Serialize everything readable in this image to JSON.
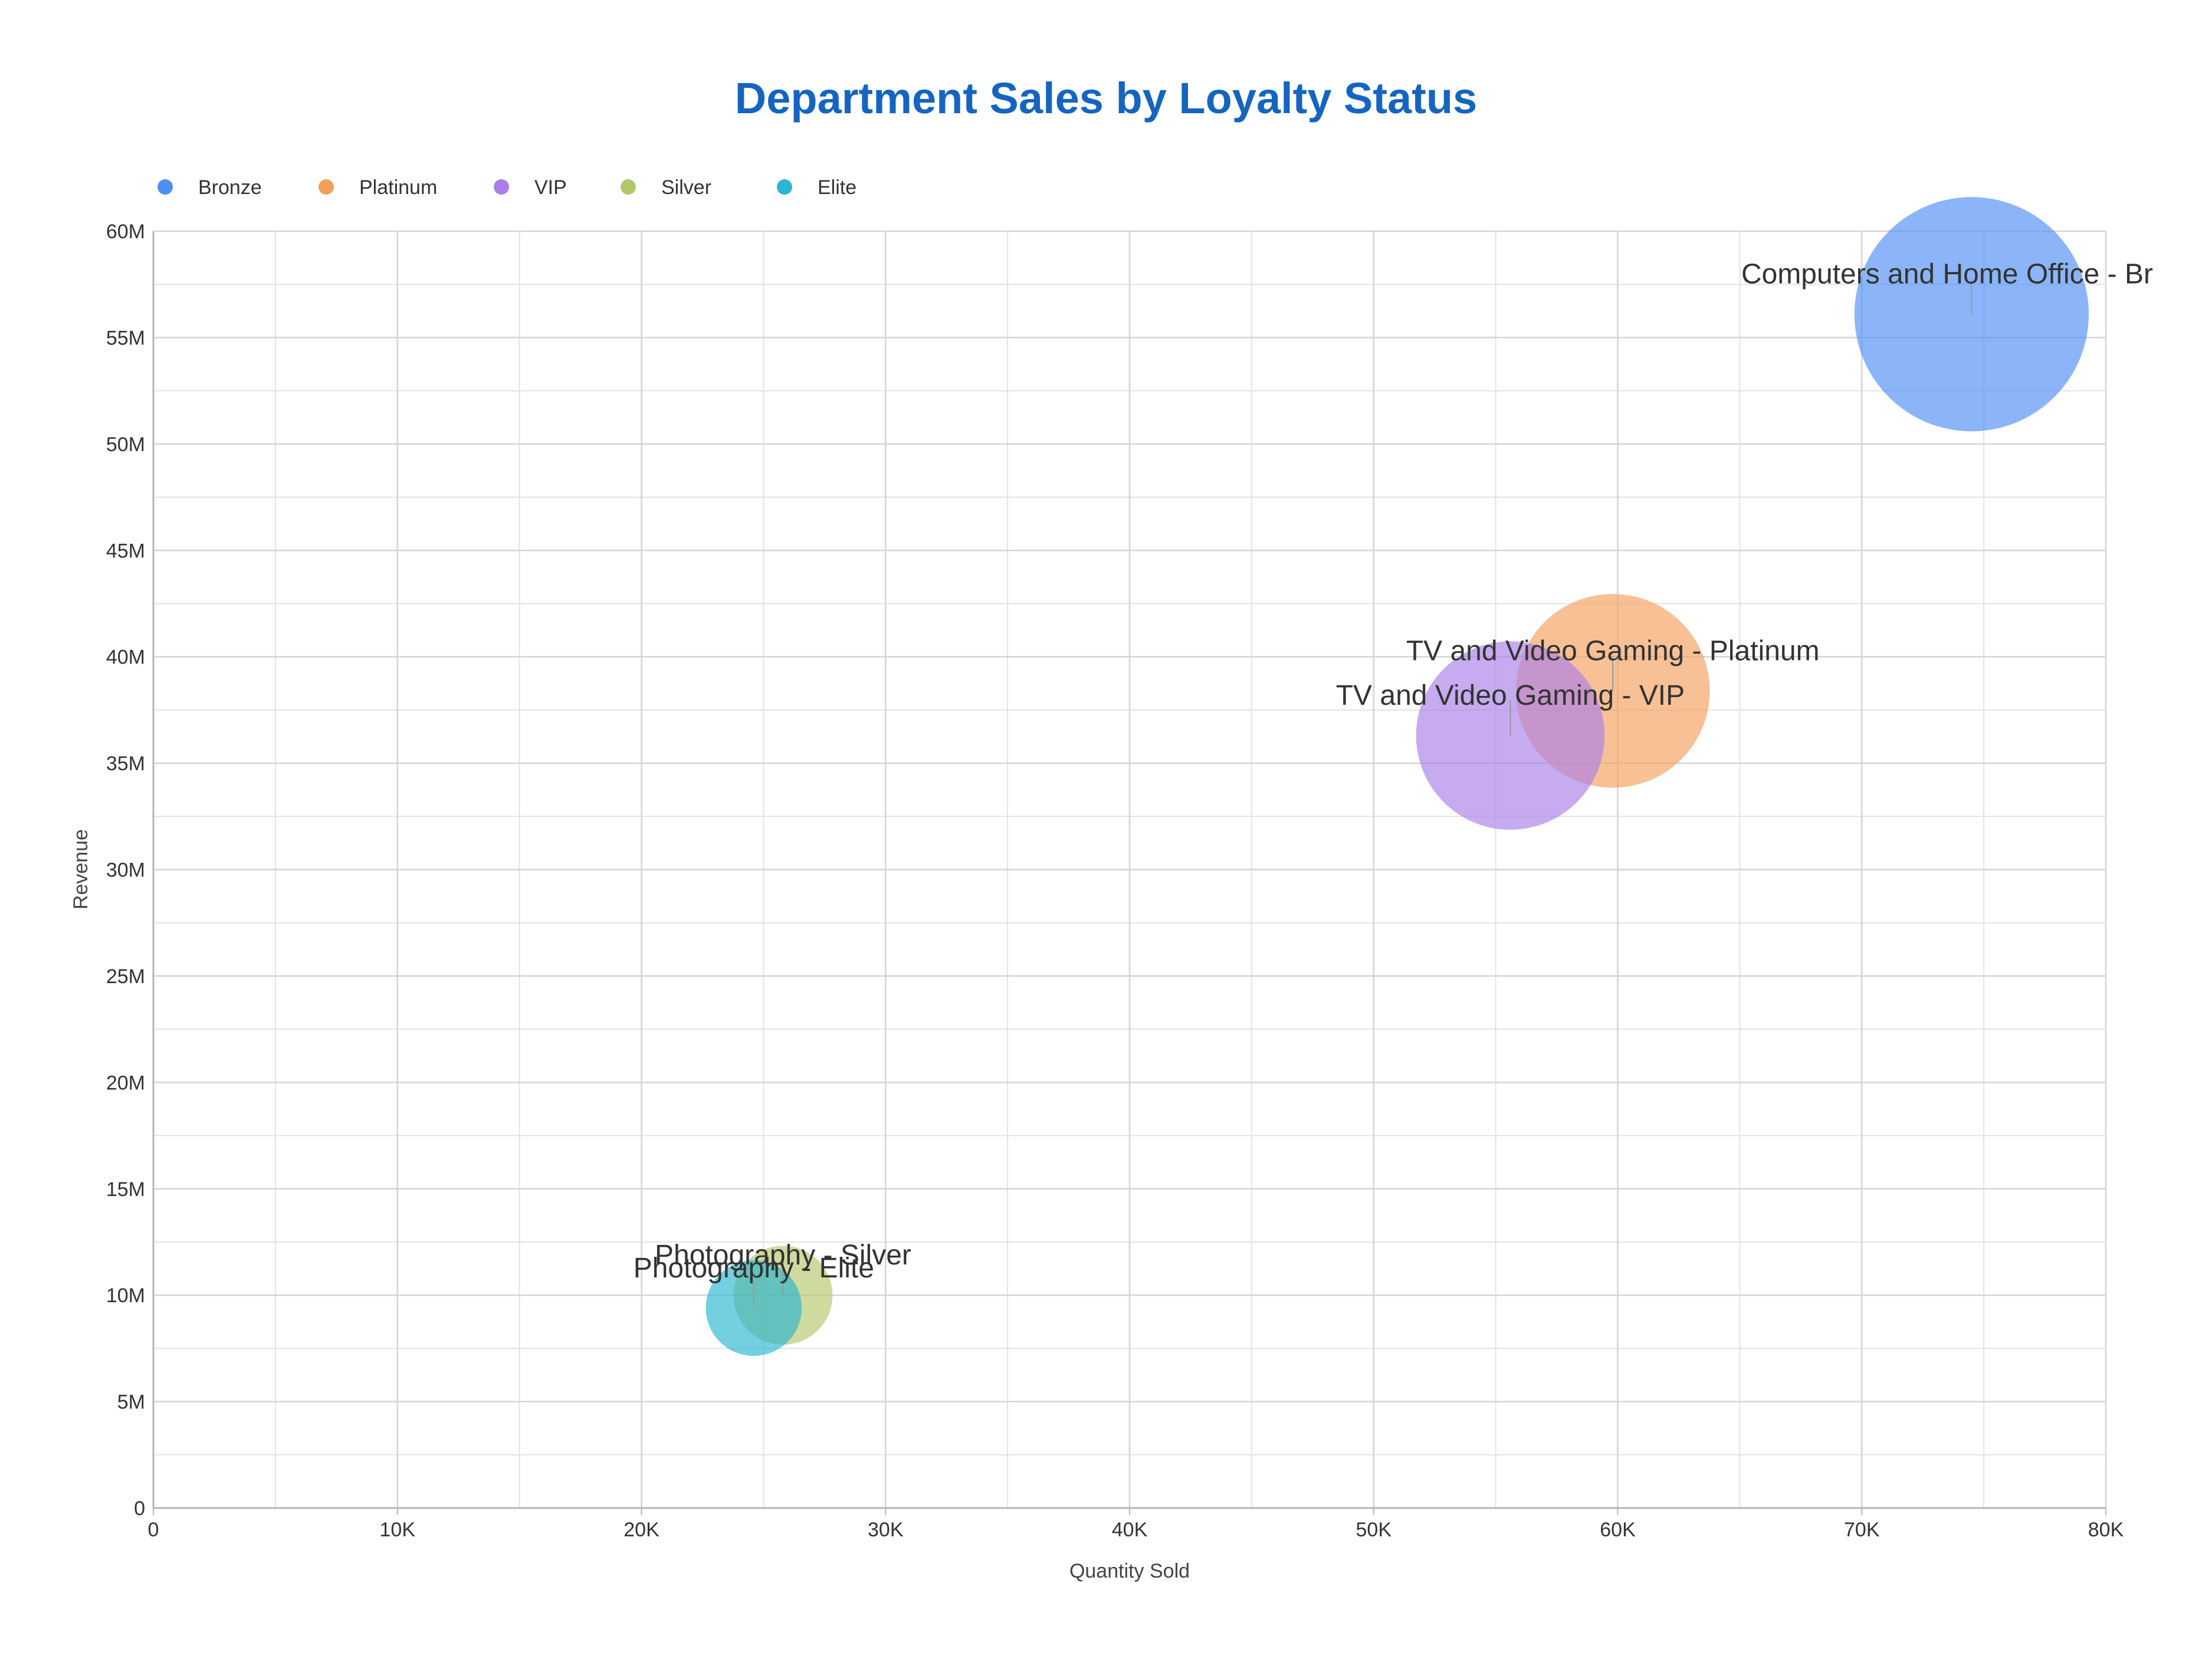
{
  "chart_data": {
    "type": "scatter",
    "title": "Department Sales by Loyalty Status",
    "xlabel": "Quantity Sold",
    "ylabel": "Revenue",
    "xlim": [
      0,
      80000
    ],
    "ylim": [
      0,
      60000000
    ],
    "x_ticks": [
      0,
      10000,
      20000,
      30000,
      40000,
      50000,
      60000,
      70000,
      80000
    ],
    "x_tick_labels": [
      "0",
      "10K",
      "20K",
      "30K",
      "40K",
      "50K",
      "60K",
      "70K",
      "80K"
    ],
    "y_ticks": [
      0,
      5000000,
      10000000,
      15000000,
      20000000,
      25000000,
      30000000,
      35000000,
      40000000,
      45000000,
      50000000,
      55000000,
      60000000
    ],
    "y_tick_labels": [
      "0",
      "5M",
      "10M",
      "15M",
      "20M",
      "25M",
      "30M",
      "35M",
      "40M",
      "45M",
      "50M",
      "55M",
      "60M"
    ],
    "grid": true,
    "legend_position": "top-left",
    "title_color": "#1565c0",
    "series": [
      {
        "name": "Bronze",
        "color": "#4d8ef5",
        "points": [
          {
            "x": 74500,
            "y": 56100000,
            "size": 56100000,
            "label": "Computers and Home Office - Br"
          }
        ]
      },
      {
        "name": "Platinum",
        "color": "#f59f5c",
        "points": [
          {
            "x": 59800,
            "y": 38400000,
            "size": 38400000,
            "label": "TV and Video Gaming - Platinum"
          }
        ]
      },
      {
        "name": "VIP",
        "color": "#a97ee8",
        "points": [
          {
            "x": 55600,
            "y": 36300000,
            "size": 36300000,
            "label": "TV and Video Gaming - VIP"
          }
        ]
      },
      {
        "name": "Silver",
        "color": "#b3c66a",
        "points": [
          {
            "x": 25800,
            "y": 10000000,
            "size": 10000000,
            "label": "Photography - Silver"
          }
        ]
      },
      {
        "name": "Elite",
        "color": "#2ab6d0",
        "points": [
          {
            "x": 24600,
            "y": 9400000,
            "size": 9400000,
            "label": "Photography - Elite"
          }
        ]
      }
    ]
  }
}
